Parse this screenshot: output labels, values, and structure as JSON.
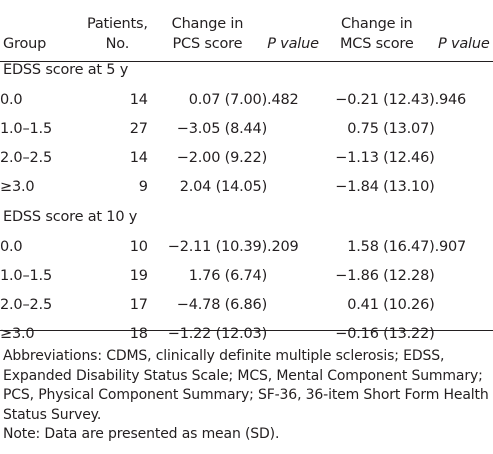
{
  "table": {
    "headers": {
      "group": "Group",
      "patients_line1": "Patients,",
      "patients_line2": "No.",
      "pcs_line1": "Change in",
      "pcs_line2": "PCS score",
      "pcs_p": "P value",
      "mcs_line1": "Change in",
      "mcs_line2": "MCS score",
      "mcs_p": "P value"
    },
    "sections": [
      {
        "title": "EDSS score at 5 y",
        "rows": [
          {
            "group": "0.0",
            "n": "14",
            "pcs": "0.07 (7.00)",
            "pcs_p": ".482",
            "mcs": "−0.21 (12.43)",
            "mcs_p": ".946"
          },
          {
            "group": "1.0–1.5",
            "n": "27",
            "pcs": "−3.05 (8.44)",
            "pcs_p": "",
            "mcs": "0.75 (13.07)",
            "mcs_p": ""
          },
          {
            "group": "2.0–2.5",
            "n": "14",
            "pcs": "−2.00 (9.22)",
            "pcs_p": "",
            "mcs": "−1.13 (12.46)",
            "mcs_p": ""
          },
          {
            "group": "≥3.0",
            "n": "9",
            "pcs": "2.04 (14.05)",
            "pcs_p": "",
            "mcs": "−1.84 (13.10)",
            "mcs_p": ""
          }
        ]
      },
      {
        "title": "EDSS score at 10 y",
        "rows": [
          {
            "group": "0.0",
            "n": "10",
            "pcs": "−2.11 (10.39)",
            "pcs_p": ".209",
            "mcs": "1.58 (16.47)",
            "mcs_p": ".907"
          },
          {
            "group": "1.0–1.5",
            "n": "19",
            "pcs": "1.76 (6.74)",
            "pcs_p": "",
            "mcs": "−1.86 (12.28)",
            "mcs_p": ""
          },
          {
            "group": "2.0–2.5",
            "n": "17",
            "pcs": "−4.78 (6.86)",
            "pcs_p": "",
            "mcs": "0.41 (10.26)",
            "mcs_p": ""
          },
          {
            "group": "≥3.0",
            "n": "18",
            "pcs": "−1.22 (12.03)",
            "pcs_p": "",
            "mcs": "−0.16 (13.22)",
            "mcs_p": ""
          }
        ]
      }
    ]
  },
  "footnotes": {
    "abbreviations": "Abbreviations: CDMS, clinically definite multiple sclerosis; EDSS, Expanded Disability Status Scale; MCS, Mental Component Summary; PCS, Physical Component Summary; SF-36, 36-item Short Form Health Status Survey.",
    "note": "Note: Data are presented as mean (SD)."
  }
}
